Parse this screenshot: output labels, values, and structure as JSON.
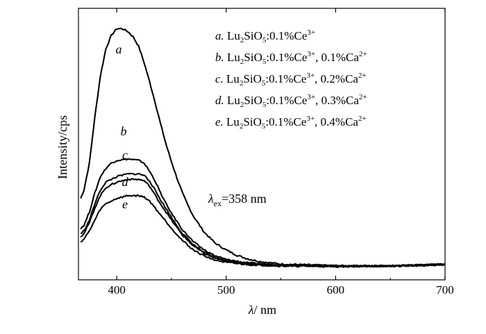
{
  "chart_data": {
    "type": "line",
    "xlabel_symbol": "λ",
    "xlabel_unit": "/ nm",
    "ylabel": "Intensity/cps",
    "xlim": [
      365,
      700
    ],
    "ylim": [
      0,
      1
    ],
    "x_ticks": [
      400,
      500,
      600,
      700
    ],
    "grid": false,
    "legend_position": "top-right",
    "legend": [
      {
        "letter": "a.",
        "host": "Lu",
        "sub1": "2",
        "mid": "SiO",
        "sub2": "5",
        "dopant": ":0.1%Ce",
        "sup1": "3+",
        "co": "",
        "sup2": ""
      },
      {
        "letter": "b.",
        "host": "Lu",
        "sub1": "2",
        "mid": "SiO",
        "sub2": "5",
        "dopant": ":0.1%Ce",
        "sup1": "3+",
        "co": ", 0.1%Ca",
        "sup2": "2+"
      },
      {
        "letter": "c.",
        "host": "Lu",
        "sub1": "2",
        "mid": "SiO",
        "sub2": "5",
        "dopant": ":0.1%Ce",
        "sup1": "3+",
        "co": ", 0.2%Ca",
        "sup2": "2+"
      },
      {
        "letter": "d.",
        "host": "Lu",
        "sub1": "2",
        "mid": "SiO",
        "sub2": "5",
        "dopant": ":0.1%Ce",
        "sup1": "3+",
        "co": ", 0.3%Ca",
        "sup2": "2+"
      },
      {
        "letter": "e.",
        "host": "Lu",
        "sub1": "2",
        "mid": "SiO",
        "sub2": "5",
        "dopant": ":0.1%Ce",
        "sup1": "3+",
        "co": ", 0.4%Ca",
        "sup2": "2+"
      }
    ],
    "annotation": {
      "symbol": "λ",
      "sub": "ex",
      "text": "=358 nm"
    },
    "series": [
      {
        "name": "a",
        "peak_x": 403,
        "points": [
          [
            367,
            0.3
          ],
          [
            370,
            0.33
          ],
          [
            375,
            0.43
          ],
          [
            380,
            0.6
          ],
          [
            385,
            0.75
          ],
          [
            390,
            0.85
          ],
          [
            395,
            0.9
          ],
          [
            400,
            0.925
          ],
          [
            405,
            0.925
          ],
          [
            410,
            0.915
          ],
          [
            415,
            0.895
          ],
          [
            420,
            0.86
          ],
          [
            425,
            0.8
          ],
          [
            430,
            0.73
          ],
          [
            435,
            0.655
          ],
          [
            440,
            0.575
          ],
          [
            445,
            0.5
          ],
          [
            450,
            0.435
          ],
          [
            455,
            0.375
          ],
          [
            460,
            0.32
          ],
          [
            465,
            0.275
          ],
          [
            470,
            0.235
          ],
          [
            480,
            0.175
          ],
          [
            490,
            0.135
          ],
          [
            500,
            0.11
          ],
          [
            510,
            0.09
          ],
          [
            520,
            0.077
          ],
          [
            530,
            0.068
          ],
          [
            550,
            0.058
          ],
          [
            575,
            0.055
          ],
          [
            600,
            0.052
          ],
          [
            625,
            0.051
          ],
          [
            650,
            0.052
          ],
          [
            675,
            0.054
          ],
          [
            700,
            0.058
          ]
        ]
      },
      {
        "name": "b",
        "peak_x": 408,
        "points": [
          [
            367,
            0.19
          ],
          [
            370,
            0.2
          ],
          [
            375,
            0.25
          ],
          [
            380,
            0.32
          ],
          [
            385,
            0.38
          ],
          [
            390,
            0.41
          ],
          [
            395,
            0.43
          ],
          [
            400,
            0.44
          ],
          [
            410,
            0.445
          ],
          [
            420,
            0.44
          ],
          [
            425,
            0.43
          ],
          [
            430,
            0.4
          ],
          [
            435,
            0.365
          ],
          [
            440,
            0.32
          ],
          [
            445,
            0.28
          ],
          [
            450,
            0.245
          ],
          [
            460,
            0.185
          ],
          [
            470,
            0.14
          ],
          [
            480,
            0.11
          ],
          [
            490,
            0.088
          ],
          [
            500,
            0.075
          ],
          [
            520,
            0.062
          ],
          [
            550,
            0.055
          ],
          [
            600,
            0.051
          ],
          [
            650,
            0.051
          ],
          [
            700,
            0.057
          ]
        ]
      },
      {
        "name": "c",
        "peak_x": 415,
        "points": [
          [
            367,
            0.17
          ],
          [
            370,
            0.18
          ],
          [
            375,
            0.22
          ],
          [
            380,
            0.28
          ],
          [
            385,
            0.33
          ],
          [
            390,
            0.36
          ],
          [
            400,
            0.38
          ],
          [
            410,
            0.39
          ],
          [
            420,
            0.39
          ],
          [
            425,
            0.385
          ],
          [
            430,
            0.365
          ],
          [
            440,
            0.295
          ],
          [
            450,
            0.23
          ],
          [
            460,
            0.17
          ],
          [
            470,
            0.13
          ],
          [
            480,
            0.1
          ],
          [
            490,
            0.082
          ],
          [
            500,
            0.07
          ],
          [
            520,
            0.06
          ],
          [
            550,
            0.054
          ],
          [
            600,
            0.051
          ],
          [
            650,
            0.051
          ],
          [
            700,
            0.057
          ]
        ]
      },
      {
        "name": "d",
        "peak_x": 418,
        "points": [
          [
            367,
            0.16
          ],
          [
            370,
            0.17
          ],
          [
            375,
            0.21
          ],
          [
            380,
            0.265
          ],
          [
            385,
            0.31
          ],
          [
            390,
            0.34
          ],
          [
            400,
            0.36
          ],
          [
            410,
            0.37
          ],
          [
            420,
            0.37
          ],
          [
            425,
            0.365
          ],
          [
            430,
            0.345
          ],
          [
            440,
            0.28
          ],
          [
            450,
            0.22
          ],
          [
            460,
            0.165
          ],
          [
            470,
            0.125
          ],
          [
            480,
            0.097
          ],
          [
            490,
            0.08
          ],
          [
            500,
            0.069
          ],
          [
            520,
            0.059
          ],
          [
            550,
            0.053
          ],
          [
            600,
            0.05
          ],
          [
            650,
            0.051
          ],
          [
            700,
            0.056
          ]
        ]
      },
      {
        "name": "e",
        "peak_x": 420,
        "points": [
          [
            367,
            0.14
          ],
          [
            370,
            0.15
          ],
          [
            375,
            0.18
          ],
          [
            380,
            0.22
          ],
          [
            385,
            0.26
          ],
          [
            390,
            0.28
          ],
          [
            400,
            0.3
          ],
          [
            410,
            0.31
          ],
          [
            420,
            0.31
          ],
          [
            425,
            0.305
          ],
          [
            430,
            0.29
          ],
          [
            440,
            0.24
          ],
          [
            450,
            0.19
          ],
          [
            460,
            0.145
          ],
          [
            470,
            0.11
          ],
          [
            480,
            0.088
          ],
          [
            490,
            0.073
          ],
          [
            500,
            0.064
          ],
          [
            520,
            0.056
          ],
          [
            550,
            0.051
          ],
          [
            600,
            0.049
          ],
          [
            650,
            0.05
          ],
          [
            700,
            0.055
          ]
        ]
      }
    ]
  }
}
